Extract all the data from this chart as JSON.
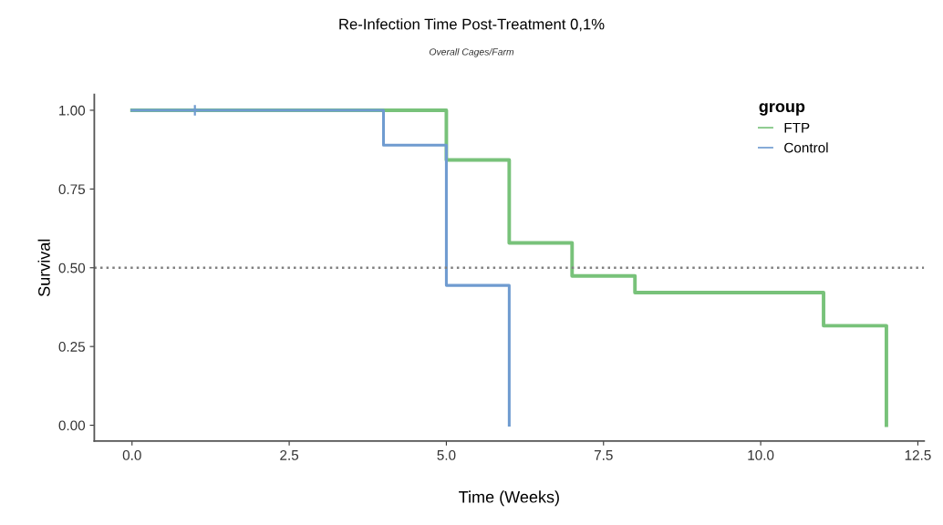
{
  "chart_data": {
    "type": "step",
    "title": "Re-Infection Time Post-Treatment 0,1%",
    "subtitle": "Overall Cages/Farm",
    "xlabel": "Time (Weeks)",
    "ylabel": "Survival",
    "legend_title": "group",
    "series": [
      {
        "name": "FTP",
        "color": "#78c27a",
        "x": [
          0,
          5,
          6,
          7,
          8,
          11,
          12
        ],
        "values": [
          1.0,
          0.842,
          0.579,
          0.474,
          0.421,
          0.316,
          0.0
        ]
      },
      {
        "name": "Control",
        "color": "#6f9bd0",
        "x": [
          0,
          4,
          5,
          6
        ],
        "values": [
          1.0,
          0.889,
          0.444,
          0.0
        ]
      },
      {
        "type": "scatter",
        "marker": "cross",
        "color": "#6f9bd0",
        "x": [
          1
        ],
        "values": [
          1.0
        ]
      }
    ],
    "ref_lines": [
      {
        "axis": "y",
        "value": 0.5,
        "color": "#808080",
        "line_style": "dotted"
      }
    ],
    "xlim": [
      -0.6,
      12.6
    ],
    "xticks": [
      {
        "value": 0,
        "label": "0.0"
      },
      {
        "value": 2.5,
        "label": "2.5"
      },
      {
        "value": 5,
        "label": "5.0"
      },
      {
        "value": 7.5,
        "label": "7.5"
      },
      {
        "value": 10,
        "label": "10.0"
      },
      {
        "value": 12.5,
        "label": "12.5"
      }
    ],
    "ylim": [
      -0.05,
      1.05
    ],
    "yticks": [
      {
        "value": 0,
        "label": "0.00"
      },
      {
        "value": 0.25,
        "label": "0.25"
      },
      {
        "value": 0.5,
        "label": "0.50"
      },
      {
        "value": 0.75,
        "label": "0.75"
      },
      {
        "value": 1,
        "label": "1.00"
      }
    ],
    "grid": false,
    "legend": "top right"
  }
}
